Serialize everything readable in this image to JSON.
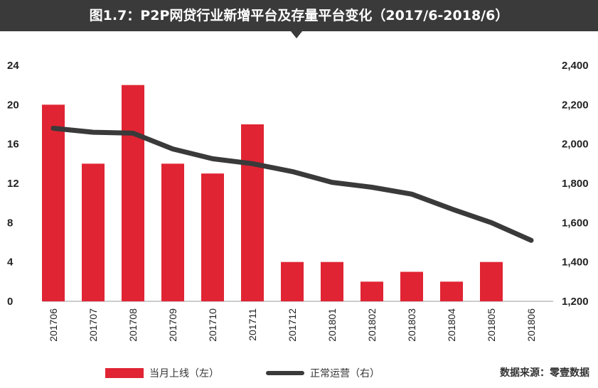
{
  "title": "图1.7：P2P网贷行业新增平台及存量平台变化（2017/6-2018/6）",
  "source": "数据来源：零壹数据",
  "colors": {
    "bar": "#e02433",
    "line": "#3a3a3a",
    "header": "#3a3a3a"
  },
  "chart_data": {
    "type": "bar",
    "categories": [
      "201706",
      "201707",
      "201708",
      "201709",
      "201710",
      "201711",
      "201712",
      "201801",
      "201802",
      "201803",
      "201804",
      "201805",
      "201806"
    ],
    "series": [
      {
        "name": "当月上线（左）",
        "type": "bar",
        "axis": "left",
        "values": [
          20,
          14,
          22,
          14,
          13,
          18,
          4,
          4,
          2,
          3,
          2,
          4,
          0
        ]
      },
      {
        "name": "正常运营（右）",
        "type": "line",
        "axis": "right",
        "values": [
          2080,
          2060,
          2055,
          1975,
          1925,
          1900,
          1860,
          1805,
          1780,
          1745,
          1670,
          1600,
          1510
        ]
      }
    ],
    "y_left": {
      "range": [
        0,
        24
      ],
      "ticks": [
        "0",
        "4",
        "8",
        "12",
        "16",
        "20",
        "24"
      ]
    },
    "y_right": {
      "range": [
        1200,
        2400
      ],
      "ticks": [
        "1,200",
        "1,400",
        "1,600",
        "1,800",
        "2,000",
        "2,200",
        "2,400"
      ]
    },
    "legend": "bottom",
    "grid": false
  }
}
